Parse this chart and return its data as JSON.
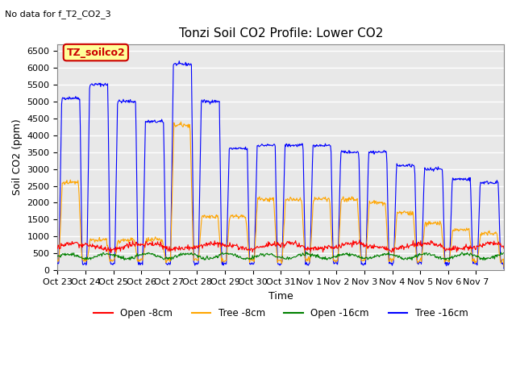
{
  "title": "Tonzi Soil CO2 Profile: Lower CO2",
  "subtitle": "No data for f_T2_CO2_3",
  "xlabel": "Time",
  "ylabel": "Soil CO2 (ppm)",
  "ylim": [
    0,
    6700
  ],
  "yticks": [
    0,
    500,
    1000,
    1500,
    2000,
    2500,
    3000,
    3500,
    4000,
    4500,
    5000,
    5500,
    6000,
    6500
  ],
  "legend_labels": [
    "Open -8cm",
    "Tree -8cm",
    "Open -16cm",
    "Tree -16cm"
  ],
  "legend_colors": [
    "red",
    "orange",
    "green",
    "blue"
  ],
  "annotation_text": "TZ_soilco2",
  "annotation_color": "#cc0000",
  "annotation_box_color": "#ffff99",
  "background_color": "#e8e8e8",
  "grid_color": "#ffffff",
  "x_tick_labels": [
    "Oct 23",
    "Oct 24",
    "Oct 25",
    "Oct 26",
    "Oct 27",
    "Oct 28",
    "Oct 29",
    "Oct 30",
    "Oct 31",
    "Nov 1",
    "Nov 2",
    "Nov 3",
    "Nov 4",
    "Nov 5",
    "Nov 6",
    "Nov 7"
  ],
  "blue_peaks": [
    5100,
    5500,
    5000,
    4400,
    6100,
    5000,
    3600,
    3700,
    3700,
    3700,
    3500,
    3500,
    3100,
    3000,
    2700,
    2600
  ],
  "orange_peaks": [
    2600,
    900,
    900,
    900,
    4300,
    1600,
    1600,
    2100,
    2100,
    2100,
    2100,
    2000,
    1700,
    1400,
    1200,
    1100
  ],
  "blue_base": 200,
  "orange_base": 300,
  "red_base": 680,
  "green_base": 420
}
